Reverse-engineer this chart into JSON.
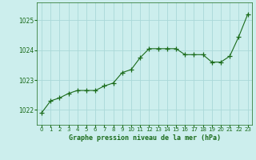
{
  "x": [
    0,
    1,
    2,
    3,
    4,
    5,
    6,
    7,
    8,
    9,
    10,
    11,
    12,
    13,
    14,
    15,
    16,
    17,
    18,
    19,
    20,
    21,
    22,
    23
  ],
  "y": [
    1021.9,
    1022.3,
    1022.4,
    1022.55,
    1022.65,
    1022.65,
    1022.65,
    1022.8,
    1022.9,
    1023.25,
    1023.35,
    1023.75,
    1024.05,
    1024.05,
    1024.05,
    1024.05,
    1023.85,
    1023.85,
    1023.85,
    1023.6,
    1023.6,
    1023.8,
    1024.45,
    1025.2
  ],
  "line_color": "#1a6b1a",
  "marker": "+",
  "marker_size": 4,
  "marker_color": "#1a6b1a",
  "bg_color": "#cceeed",
  "grid_color": "#aad8d8",
  "title": "Graphe pression niveau de la mer (hPa)",
  "title_color": "#1a6b1a",
  "ylabel_ticks": [
    1022,
    1023,
    1024,
    1025
  ],
  "xlim": [
    -0.5,
    23.5
  ],
  "ylim": [
    1021.5,
    1025.6
  ],
  "tick_color": "#1a6b1a",
  "axis_color": "#1a6b1a",
  "xlabel_labels": [
    "0",
    "1",
    "2",
    "3",
    "4",
    "5",
    "6",
    "7",
    "8",
    "9",
    "10",
    "11",
    "12",
    "13",
    "14",
    "15",
    "16",
    "17",
    "18",
    "19",
    "20",
    "21",
    "22",
    "23"
  ]
}
